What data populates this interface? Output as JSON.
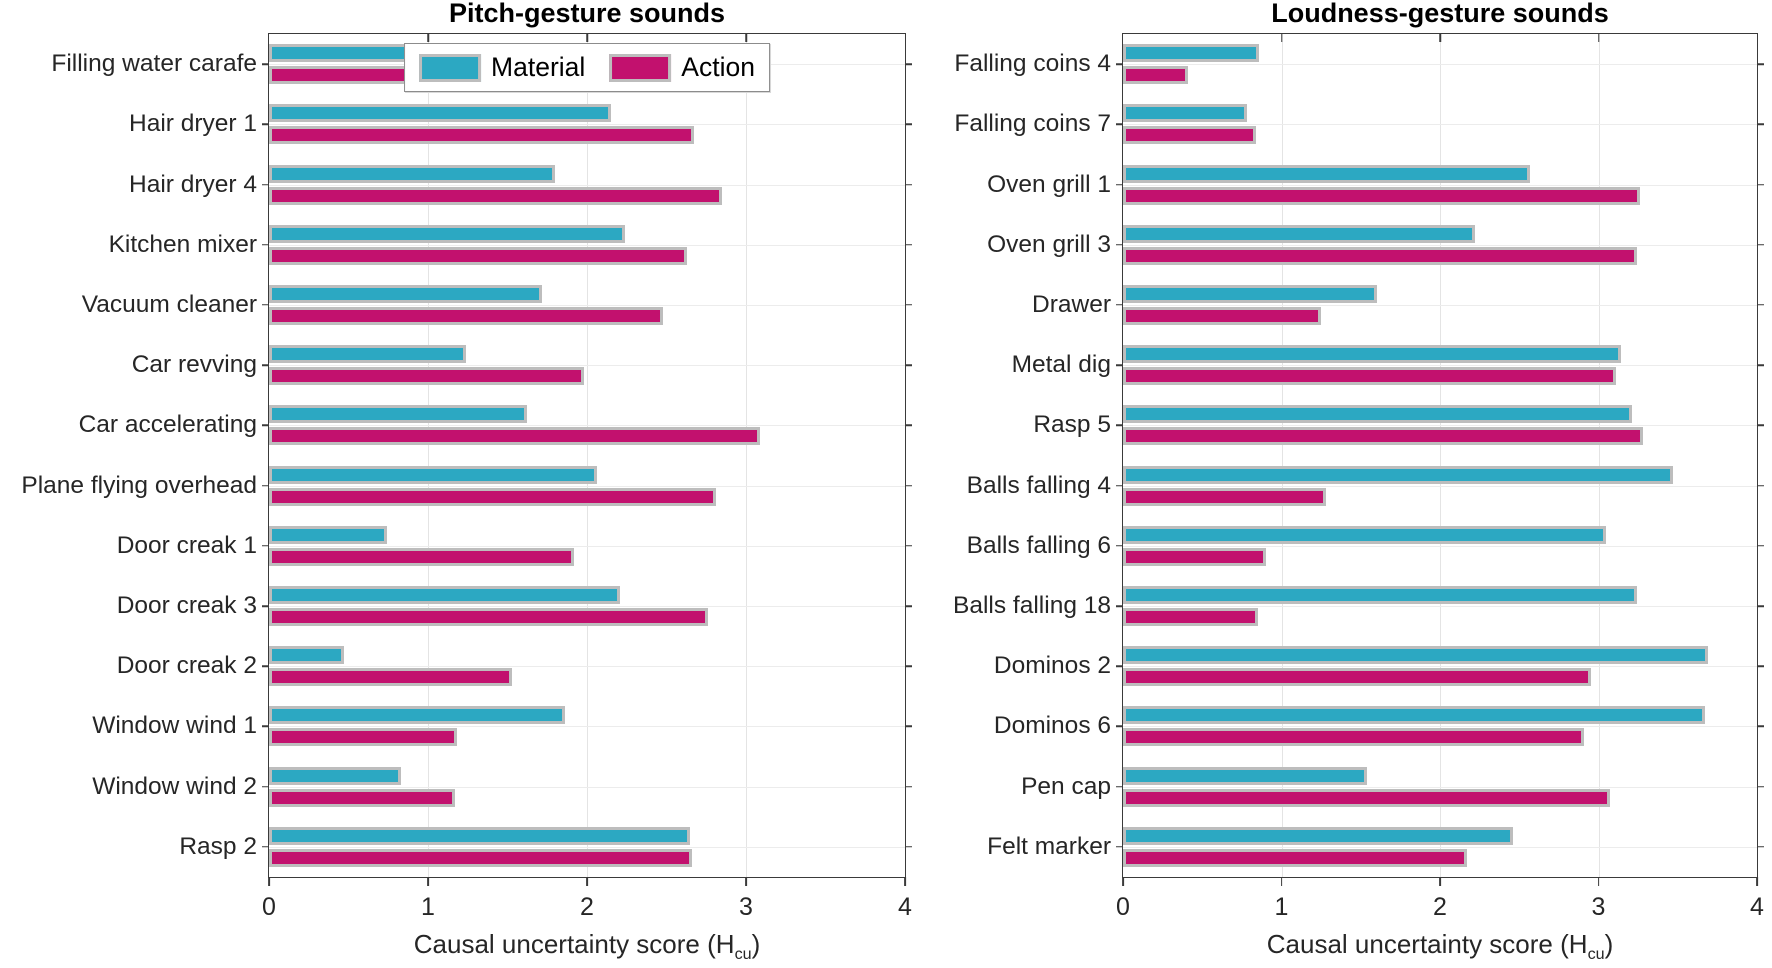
{
  "figure": {
    "background": "#ffffff",
    "axis_color": "#3a3a3a",
    "bar_edge_color": "#bdbdbd",
    "grid_color": "#e8e8e8"
  },
  "legend": {
    "items": [
      {
        "label": "Material",
        "color": "#2ca8c2"
      },
      {
        "label": "Action",
        "color": "#c2116e"
      }
    ]
  },
  "xlabel": {
    "prefix": "Causal uncertainty score (H",
    "sub": "cu",
    "suffix": ")"
  },
  "chart_data": [
    {
      "type": "bar",
      "orientation": "horizontal",
      "title": "Pitch-gesture sounds",
      "xlim": [
        0,
        4
      ],
      "xticks": [
        "0",
        "1",
        "2",
        "3",
        "4"
      ],
      "grid": true,
      "legend_position": "top-center",
      "categories": [
        "Filling water carafe",
        "Hair dryer 1",
        "Hair dryer 4",
        "Kitchen mixer",
        "Vacuum cleaner",
        "Car revving",
        "Car accelerating",
        "Plane flying overhead",
        "Door creak 1",
        "Door creak 3",
        "Door creak 2",
        "Window wind 1",
        "Window wind 2",
        "Rasp 2"
      ],
      "series": [
        {
          "name": "Material",
          "color": "#2ca8c2",
          "values": [
            1.08,
            2.15,
            1.8,
            2.24,
            1.72,
            1.24,
            1.62,
            2.06,
            0.74,
            2.21,
            0.47,
            1.86,
            0.83,
            2.65
          ]
        },
        {
          "name": "Action",
          "color": "#c2116e",
          "values": [
            2.8,
            2.67,
            2.85,
            2.63,
            2.48,
            1.98,
            3.09,
            2.81,
            1.92,
            2.76,
            1.53,
            1.18,
            1.17,
            2.66
          ]
        }
      ]
    },
    {
      "type": "bar",
      "orientation": "horizontal",
      "title": "Loudness-gesture sounds",
      "xlim": [
        0,
        4
      ],
      "xticks": [
        "0",
        "1",
        "2",
        "3",
        "4"
      ],
      "grid": true,
      "categories": [
        "Falling coins 4",
        "Falling coins 7",
        "Oven grill 1",
        "Oven grill 3",
        "Drawer",
        "Metal dig",
        "Rasp 5",
        "Balls falling 4",
        "Balls falling 6",
        "Balls falling 18",
        "Dominos 2",
        "Dominos 6",
        "Pen cap",
        "Felt marker"
      ],
      "series": [
        {
          "name": "Material",
          "color": "#2ca8c2",
          "values": [
            0.86,
            0.78,
            2.57,
            2.22,
            1.6,
            3.14,
            3.21,
            3.47,
            3.05,
            3.24,
            3.69,
            3.67,
            1.54,
            2.46
          ]
        },
        {
          "name": "Action",
          "color": "#c2116e",
          "values": [
            0.41,
            0.84,
            3.26,
            3.24,
            1.25,
            3.11,
            3.28,
            1.28,
            0.9,
            0.85,
            2.95,
            2.91,
            3.07,
            2.17
          ]
        }
      ]
    }
  ]
}
